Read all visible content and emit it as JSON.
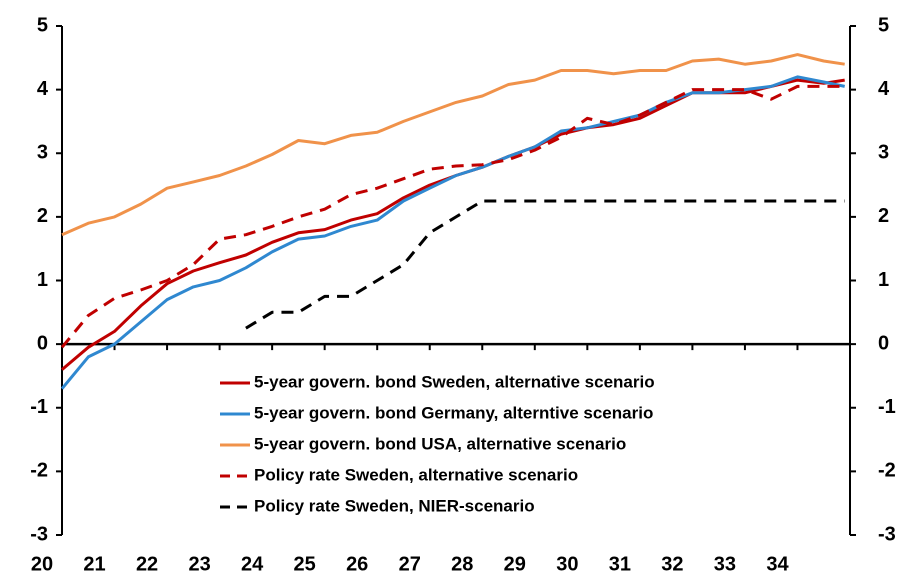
{
  "chart_data": {
    "type": "line",
    "x": [
      20,
      20.5,
      21,
      21.5,
      22,
      22.5,
      23,
      23.5,
      24,
      24.5,
      25,
      25.5,
      26,
      26.5,
      27,
      27.5,
      28,
      28.5,
      29,
      29.5,
      30,
      30.5,
      31,
      31.5,
      32,
      32.5,
      33,
      33.5,
      34,
      34.5,
      34.9
    ],
    "xlim": [
      20,
      35
    ],
    "xticks": [
      20,
      21,
      22,
      23,
      24,
      25,
      26,
      27,
      28,
      29,
      30,
      31,
      32,
      33,
      34
    ],
    "ylim": [
      -3,
      5
    ],
    "yticks": [
      -3,
      -2,
      -1,
      0,
      1,
      2,
      3,
      4,
      5
    ],
    "y2lim": [
      -3,
      5
    ],
    "y2ticks": [
      -3,
      -2,
      -1,
      0,
      1,
      2,
      3,
      4,
      5
    ],
    "grid": false,
    "legend": "lower-center",
    "series": [
      {
        "name": "5-year govern. bond Sweden, alternative scenario",
        "color": "#c00000",
        "dash": false,
        "values": [
          -0.4,
          -0.05,
          0.2,
          0.6,
          0.95,
          1.15,
          1.28,
          1.4,
          1.6,
          1.75,
          1.8,
          1.95,
          2.05,
          2.3,
          2.5,
          2.65,
          2.78,
          2.95,
          3.1,
          3.3,
          3.4,
          3.45,
          3.55,
          3.75,
          3.95,
          3.95,
          3.95,
          4.05,
          4.15,
          4.1,
          4.15
        ]
      },
      {
        "name": "5-year govern. bond Germany, alterntive scenario",
        "color": "#2f88d0",
        "dash": false,
        "values": [
          -0.7,
          -0.2,
          0.0,
          0.35,
          0.7,
          0.9,
          1.0,
          1.2,
          1.45,
          1.65,
          1.7,
          1.85,
          1.95,
          2.25,
          2.45,
          2.65,
          2.78,
          2.95,
          3.1,
          3.35,
          3.4,
          3.5,
          3.6,
          3.8,
          3.95,
          3.95,
          4.0,
          4.05,
          4.2,
          4.12,
          4.05
        ]
      },
      {
        "name": "5-year govern. bond USA, alternative scenario",
        "color": "#f0924a",
        "dash": false,
        "values": [
          1.72,
          1.9,
          2.0,
          2.2,
          2.45,
          2.55,
          2.65,
          2.8,
          2.98,
          3.2,
          3.15,
          3.28,
          3.33,
          3.5,
          3.65,
          3.8,
          3.9,
          4.08,
          4.15,
          4.3,
          4.3,
          4.25,
          4.3,
          4.3,
          4.45,
          4.48,
          4.4,
          4.45,
          4.55,
          4.45,
          4.4
        ]
      },
      {
        "name": "Policy rate Sweden, alternative scenario",
        "color": "#c00000",
        "dash": true,
        "values": [
          -0.05,
          0.45,
          0.72,
          0.85,
          1.0,
          1.25,
          1.65,
          1.72,
          1.85,
          2.0,
          2.12,
          2.35,
          2.45,
          2.6,
          2.75,
          2.8,
          2.82,
          2.9,
          3.05,
          3.25,
          3.55,
          3.45,
          3.6,
          3.8,
          4.0,
          4.0,
          4.0,
          3.85,
          4.05,
          4.05,
          4.05
        ]
      },
      {
        "name": "Policy rate Sweden, NIER-scenario",
        "color": "#000000",
        "dash": true,
        "values": [
          null,
          null,
          null,
          null,
          null,
          null,
          null,
          0.25,
          0.5,
          0.5,
          0.75,
          0.75,
          1.0,
          1.25,
          1.75,
          2.0,
          2.25,
          2.25,
          2.25,
          2.25,
          2.25,
          2.25,
          2.25,
          2.25,
          2.25,
          2.25,
          2.25,
          2.25,
          2.25,
          2.25,
          2.25
        ]
      }
    ]
  }
}
